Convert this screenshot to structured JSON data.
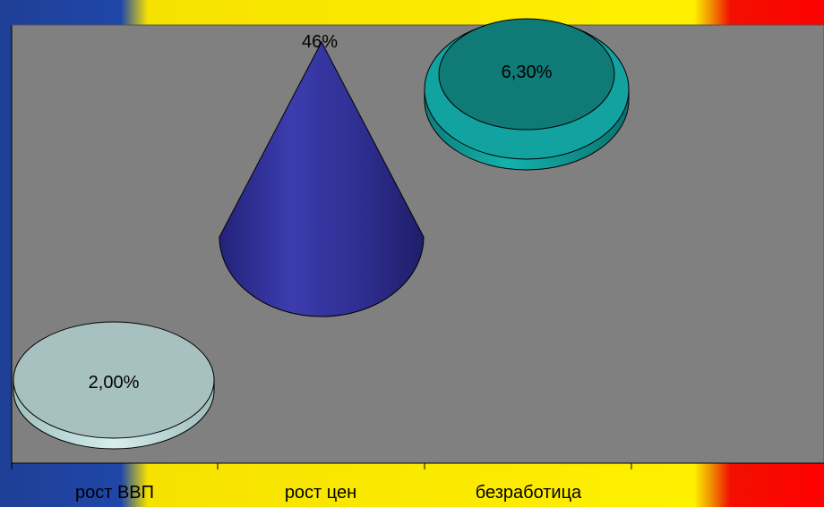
{
  "chart_data": {
    "type": "bar",
    "subtype": "3d-cone",
    "categories": [
      "рост ВВП",
      "рост цен",
      "безработица"
    ],
    "values": [
      2.0,
      46.0,
      6.3
    ],
    "data_labels": [
      "2,00%",
      "46%",
      "6,30%"
    ],
    "title": "",
    "xlabel": "",
    "ylabel": "",
    "grid": false,
    "legend": "none",
    "colors": [
      "#a7c1c1",
      "#35359c",
      "#0f8f8a"
    ]
  },
  "colors": {
    "plot_area": "#808080",
    "background_left": "#1f46a8",
    "background_middle": "#fff000",
    "background_right": "#ff0000"
  }
}
